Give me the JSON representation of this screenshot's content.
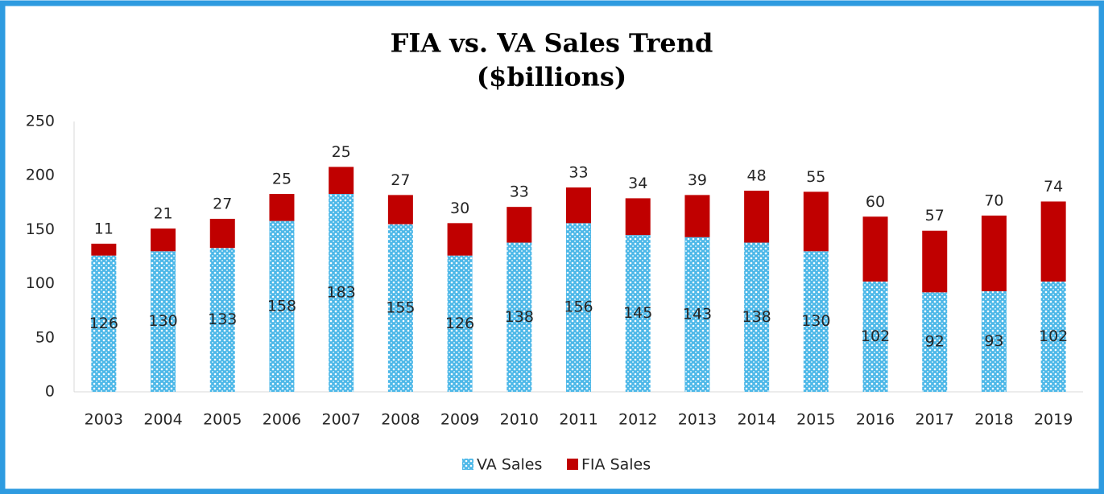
{
  "chart_data": {
    "type": "stacked_bar",
    "title": "FIA vs. VA Sales Trend",
    "subtitle": "($billions)",
    "categories": [
      "2003",
      "2004",
      "2005",
      "2006",
      "2007",
      "2008",
      "2009",
      "2010",
      "2011",
      "2012",
      "2013",
      "2014",
      "2015",
      "2016",
      "2017",
      "2018",
      "2019"
    ],
    "series": [
      {
        "name": "VA Sales",
        "color": "#4db8e8",
        "values": [
          126,
          130,
          133,
          158,
          183,
          155,
          126,
          138,
          156,
          145,
          143,
          138,
          130,
          102,
          92,
          93,
          102
        ]
      },
      {
        "name": "FIA Sales",
        "color": "#c00000",
        "values": [
          11,
          21,
          27,
          25,
          25,
          27,
          30,
          33,
          33,
          34,
          39,
          48,
          55,
          60,
          57,
          70,
          74
        ]
      }
    ],
    "ylim": [
      0,
      250
    ],
    "yticks": [
      0,
      50,
      100,
      150,
      200,
      250
    ],
    "grid": false,
    "legend": "bottom"
  }
}
